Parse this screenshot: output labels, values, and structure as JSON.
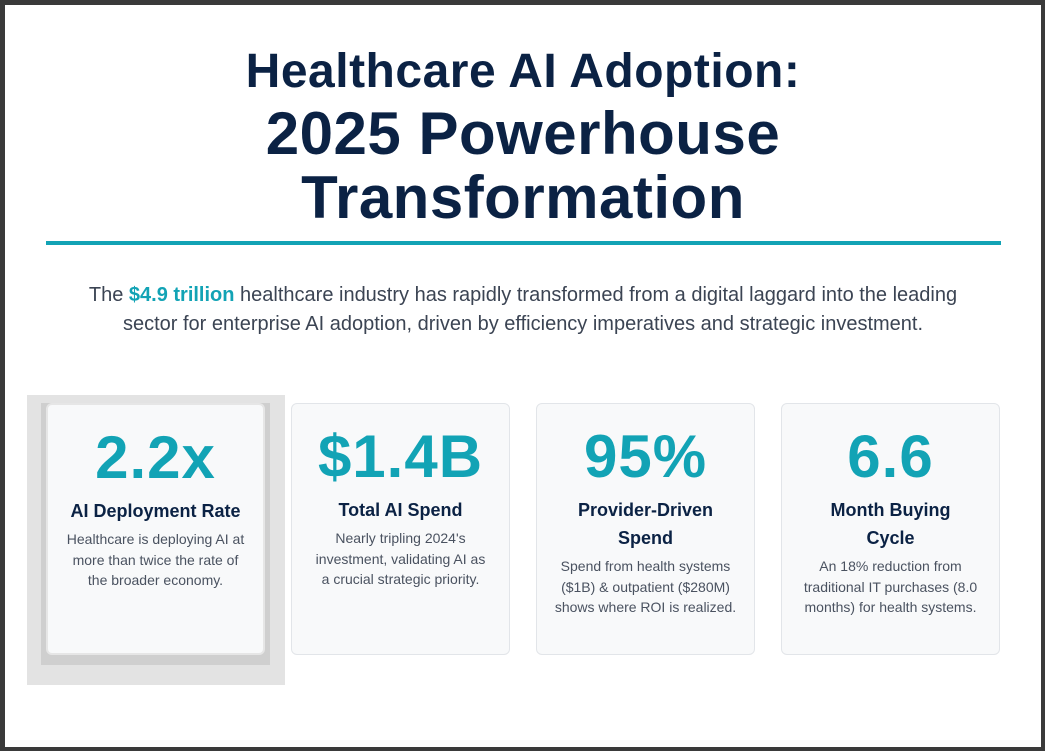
{
  "header": {
    "title_line1": "Healthcare AI Adoption:",
    "title_line2": "2025 Powerhouse",
    "title_line3": "Transformation"
  },
  "intro": {
    "prefix": "The ",
    "highlight": "$4.9 trillion",
    "suffix": " healthcare industry has rapidly transformed from a digital laggard into the leading sector for enterprise AI adoption, driven by efficiency imperatives and strategic investment."
  },
  "cards": [
    {
      "value": "2.2x",
      "label": "AI Deployment Rate",
      "description": "Healthcare is deploying AI at more than twice the rate of the broader economy."
    },
    {
      "value": "$1.4B",
      "label": "Total AI Spend",
      "description": "Nearly tripling 2024's investment, validating AI as a crucial strategic priority."
    },
    {
      "value": "95%",
      "label": "Provider-Driven Spend",
      "description": "Spend from health systems ($1B) & outpatient ($280M) shows where ROI is realized."
    },
    {
      "value": "6.6",
      "label": "Month Buying Cycle",
      "description": "An 18% reduction from traditional IT purchases (8.0 months) for health systems."
    }
  ],
  "colors": {
    "navy": "#0b2244",
    "teal": "#12a3b5",
    "body_text": "#3b4453"
  }
}
